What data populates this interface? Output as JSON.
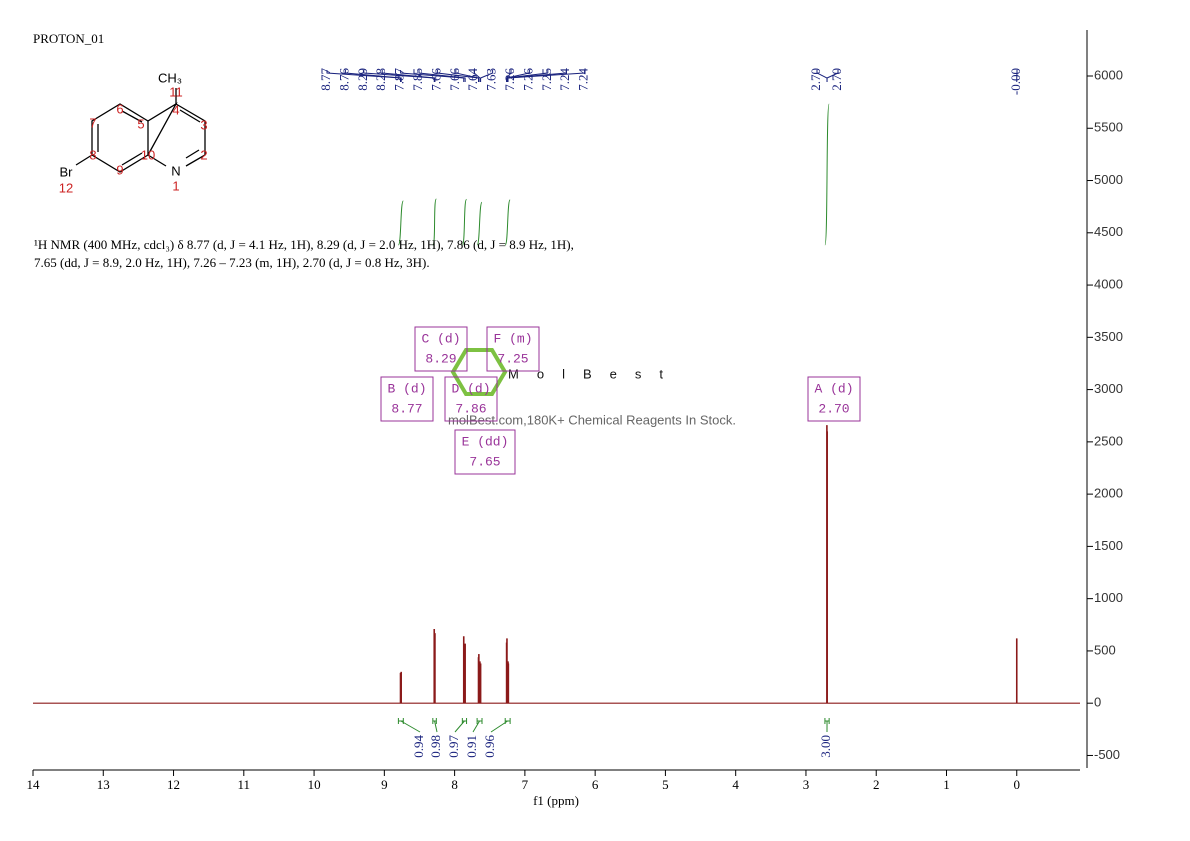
{
  "chart_data": {
    "type": "nmr",
    "title": "PROTON_01",
    "x_label": "f1 (ppm)",
    "description": "¹H NMR (400 MHz, cdcl₃) δ 8.77 (d, J = 4.1 Hz, 1H), 8.29 (d, J = 2.0 Hz, 1H), 7.86 (d, J = 8.9 Hz, 1H), 7.65 (dd, J = 8.9, 2.0 Hz, 1H), 7.26 – 7.23 (m, 1H), 2.70 (d, J = 0.8 Hz, 3H).",
    "xlim": [
      14,
      -0.9
    ],
    "ylim": [
      -620,
      6440
    ],
    "xticks": [
      14,
      13,
      12,
      11,
      10,
      9,
      8,
      7,
      6,
      5,
      4,
      3,
      2,
      1,
      0
    ],
    "yticks": [
      -500,
      0,
      500,
      1000,
      1500,
      2000,
      2500,
      3000,
      3500,
      4000,
      4500,
      5000,
      5500,
      6000
    ],
    "color": "#8b1a1a",
    "x": [
      8.77,
      8.76,
      8.29,
      8.28,
      7.87,
      7.85,
      7.66,
      7.655,
      7.64,
      7.63,
      7.26,
      7.255,
      7.25,
      7.24,
      7.235,
      2.702,
      2.698,
      0.0
    ],
    "values": [
      290,
      300,
      710,
      670,
      640,
      570,
      440,
      470,
      400,
      380,
      580,
      620,
      400,
      400,
      380,
      2660,
      2600,
      620
    ],
    "peak_labels": [
      8.77,
      8.76,
      8.29,
      8.28,
      7.87,
      7.85,
      7.66,
      7.66,
      7.64,
      7.63,
      7.26,
      7.26,
      7.25,
      7.24,
      7.24,
      {
        "value": 2.7,
        "label": "2.70"
      },
      {
        "value": 2.7,
        "label": "2.70"
      },
      {
        "value": 0,
        "label": "-0.00"
      }
    ],
    "integrals": [
      0.94,
      0.98,
      0.97,
      0.91,
      0.96,
      {
        "value": 3,
        "label": "3.00"
      }
    ],
    "integral_ranges": [
      [
        8.8,
        8.73
      ],
      [
        8.31,
        8.26
      ],
      [
        7.89,
        7.83
      ],
      [
        7.68,
        7.61
      ],
      [
        7.28,
        7.21
      ],
      [
        2.73,
        2.67
      ]
    ],
    "multiplets": [
      {
        "label": "A (d)",
        "shift": "2.70"
      },
      {
        "label": "B (d)",
        "shift": "8.77"
      },
      {
        "label": "C (d)",
        "shift": "8.29"
      },
      {
        "label": "D (d)",
        "shift": "7.86"
      },
      {
        "label": "E (dd)",
        "shift": "7.65"
      },
      {
        "label": "F (m)",
        "shift": "7.25"
      }
    ],
    "structure": {
      "groups": [
        "CH₃",
        "Br",
        "N"
      ],
      "numbers": [
        "11",
        "4",
        "3",
        "6",
        "5",
        "7",
        "2",
        "8",
        "10",
        "9",
        "1",
        "12"
      ]
    },
    "watermark": {
      "brand": "MolBest",
      "tagline": "molBest.com,180K+ Chemical Reagents In Stock."
    }
  }
}
